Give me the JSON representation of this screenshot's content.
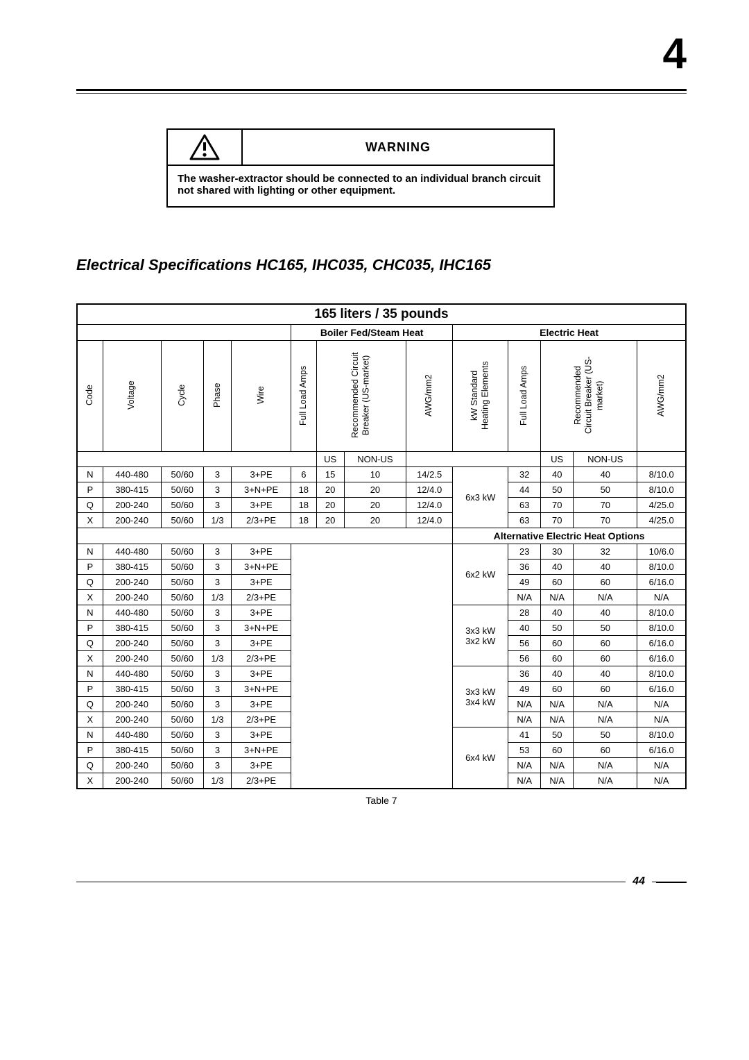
{
  "chapter_number": "4",
  "warning": {
    "title": "WARNING",
    "text": "The washer-extractor should be connected to an individual branch circuit not shared with lighting or other equipment."
  },
  "section_title": "Electrical Specifications HC165, IHC035, CHC035, IHC165",
  "table": {
    "title": "165 liters / 35 pounds",
    "heat_heads": [
      "Boiler Fed/Steam Heat",
      "Electric Heat"
    ],
    "vheads": [
      "Code",
      "Voltage",
      "Cycle",
      "Phase",
      "Wire",
      "Full Load Amps",
      "Recommended Circuit\nBreaker (US-market)",
      "AWG/mm2",
      "kW Standard\nHeating Elements",
      "Full Load Amps",
      "Recommended\nCircuit Breaker (US-\nmarket)",
      "AWG/mm2"
    ],
    "subcols": [
      "US",
      "NON-US",
      "US",
      "NON-US"
    ],
    "alt_heading": "Alternative Electric Heat Options",
    "caption": "Table 7",
    "group1": {
      "kw": "6x3 kW",
      "rows": [
        {
          "code": "N",
          "voltage": "440-480",
          "cycle": "50/60",
          "phase": "3",
          "wire": "3+PE",
          "fla": "6",
          "us": "15",
          "nonus": "10",
          "awg": "14/2.5",
          "fla2": "32",
          "us2": "40",
          "nonus2": "40",
          "awg2": "8/10.0"
        },
        {
          "code": "P",
          "voltage": "380-415",
          "cycle": "50/60",
          "phase": "3",
          "wire": "3+N+PE",
          "fla": "18",
          "us": "20",
          "nonus": "20",
          "awg": "12/4.0",
          "fla2": "44",
          "us2": "50",
          "nonus2": "50",
          "awg2": "8/10.0"
        },
        {
          "code": "Q",
          "voltage": "200-240",
          "cycle": "50/60",
          "phase": "3",
          "wire": "3+PE",
          "fla": "18",
          "us": "20",
          "nonus": "20",
          "awg": "12/4.0",
          "fla2": "63",
          "us2": "70",
          "nonus2": "70",
          "awg2": "4/25.0"
        },
        {
          "code": "X",
          "voltage": "200-240",
          "cycle": "50/60",
          "phase": "1/3",
          "wire": "2/3+PE",
          "fla": "18",
          "us": "20",
          "nonus": "20",
          "awg": "12/4.0",
          "fla2": "63",
          "us2": "70",
          "nonus2": "70",
          "awg2": "4/25.0"
        }
      ]
    },
    "alt_groups": [
      {
        "kw": "6x2 kW",
        "rows": [
          {
            "code": "N",
            "voltage": "440-480",
            "cycle": "50/60",
            "phase": "3",
            "wire": "3+PE",
            "fla2": "23",
            "us2": "30",
            "nonus2": "32",
            "awg2": "10/6.0"
          },
          {
            "code": "P",
            "voltage": "380-415",
            "cycle": "50/60",
            "phase": "3",
            "wire": "3+N+PE",
            "fla2": "36",
            "us2": "40",
            "nonus2": "40",
            "awg2": "8/10.0"
          },
          {
            "code": "Q",
            "voltage": "200-240",
            "cycle": "50/60",
            "phase": "3",
            "wire": "3+PE",
            "fla2": "49",
            "us2": "60",
            "nonus2": "60",
            "awg2": "6/16.0"
          },
          {
            "code": "X",
            "voltage": "200-240",
            "cycle": "50/60",
            "phase": "1/3",
            "wire": "2/3+PE",
            "fla2": "N/A",
            "us2": "N/A",
            "nonus2": "N/A",
            "awg2": "N/A"
          }
        ]
      },
      {
        "kw": "3x3 kW + 3x2 kW",
        "rows": [
          {
            "code": "N",
            "voltage": "440-480",
            "cycle": "50/60",
            "phase": "3",
            "wire": "3+PE",
            "fla2": "28",
            "us2": "40",
            "nonus2": "40",
            "awg2": "8/10.0"
          },
          {
            "code": "P",
            "voltage": "380-415",
            "cycle": "50/60",
            "phase": "3",
            "wire": "3+N+PE",
            "fla2": "40",
            "us2": "50",
            "nonus2": "50",
            "awg2": "8/10.0"
          },
          {
            "code": "Q",
            "voltage": "200-240",
            "cycle": "50/60",
            "phase": "3",
            "wire": "3+PE",
            "fla2": "56",
            "us2": "60",
            "nonus2": "60",
            "awg2": "6/16.0"
          },
          {
            "code": "X",
            "voltage": "200-240",
            "cycle": "50/60",
            "phase": "1/3",
            "wire": "2/3+PE",
            "fla2": "56",
            "us2": "60",
            "nonus2": "60",
            "awg2": "6/16.0"
          }
        ]
      },
      {
        "kw": "3x3 kW + 3x4 kW",
        "rows": [
          {
            "code": "N",
            "voltage": "440-480",
            "cycle": "50/60",
            "phase": "3",
            "wire": "3+PE",
            "fla2": "36",
            "us2": "40",
            "nonus2": "40",
            "awg2": "8/10.0"
          },
          {
            "code": "P",
            "voltage": "380-415",
            "cycle": "50/60",
            "phase": "3",
            "wire": "3+N+PE",
            "fla2": "49",
            "us2": "60",
            "nonus2": "60",
            "awg2": "6/16.0"
          },
          {
            "code": "Q",
            "voltage": "200-240",
            "cycle": "50/60",
            "phase": "3",
            "wire": "3+PE",
            "fla2": "N/A",
            "us2": "N/A",
            "nonus2": "N/A",
            "awg2": "N/A"
          },
          {
            "code": "X",
            "voltage": "200-240",
            "cycle": "50/60",
            "phase": "1/3",
            "wire": "2/3+PE",
            "fla2": "N/A",
            "us2": "N/A",
            "nonus2": "N/A",
            "awg2": "N/A"
          }
        ]
      },
      {
        "kw": "6x4 kW",
        "rows": [
          {
            "code": "N",
            "voltage": "440-480",
            "cycle": "50/60",
            "phase": "3",
            "wire": "3+PE",
            "fla2": "41",
            "us2": "50",
            "nonus2": "50",
            "awg2": "8/10.0"
          },
          {
            "code": "P",
            "voltage": "380-415",
            "cycle": "50/60",
            "phase": "3",
            "wire": "3+N+PE",
            "fla2": "53",
            "us2": "60",
            "nonus2": "60",
            "awg2": "6/16.0"
          },
          {
            "code": "Q",
            "voltage": "200-240",
            "cycle": "50/60",
            "phase": "3",
            "wire": "3+PE",
            "fla2": "N/A",
            "us2": "N/A",
            "nonus2": "N/A",
            "awg2": "N/A"
          },
          {
            "code": "X",
            "voltage": "200-240",
            "cycle": "50/60",
            "phase": "1/3",
            "wire": "2/3+PE",
            "fla2": "N/A",
            "us2": "N/A",
            "nonus2": "N/A",
            "awg2": "N/A"
          }
        ]
      }
    ]
  },
  "page_number": "44",
  "colors": {
    "text": "#000000",
    "bg": "#ffffff"
  }
}
